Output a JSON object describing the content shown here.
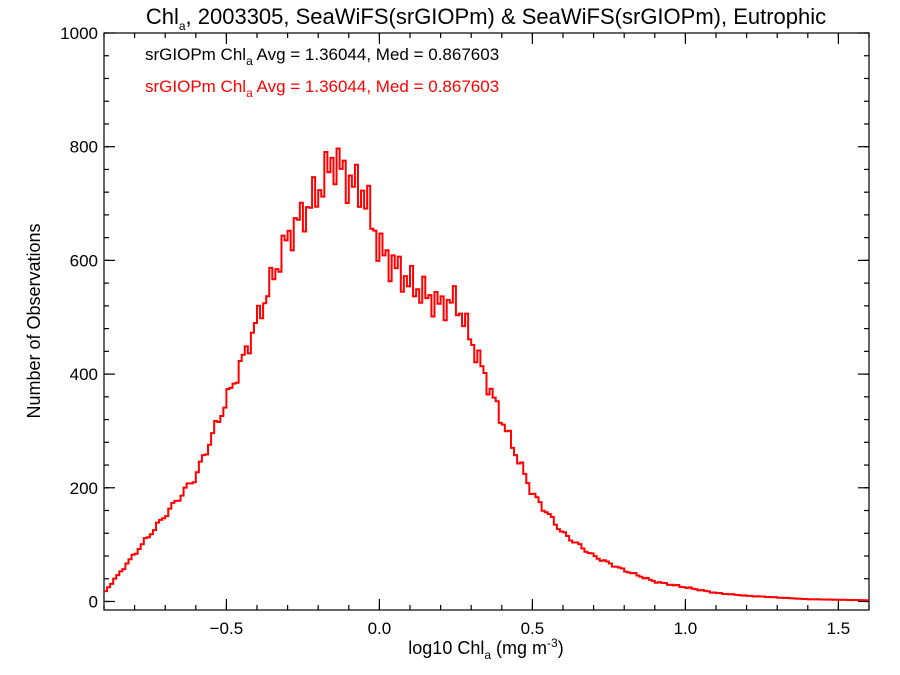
{
  "chart_data": {
    "type": "histogram",
    "title": {
      "prefix": "Chl",
      "subscript": "a",
      "rest": ", 2003305, SeaWiFS(srGIOPm) & SeaWiFS(srGIOPm), Eutrophic"
    },
    "xlabel": {
      "prefix": "log10 Chl",
      "subscript": "a",
      "rest": " (mg m",
      "superscript": "-3",
      "suffix": ")"
    },
    "ylabel": "Number of Observations",
    "xlim": [
      -0.9,
      1.6
    ],
    "ylim": [
      -15,
      1000
    ],
    "x_ticks": [
      -0.5,
      0.0,
      0.5,
      1.0,
      1.5
    ],
    "x_tick_labels": [
      "−0.5",
      "0.0",
      "0.5",
      "1.0",
      "1.5"
    ],
    "y_ticks": [
      0,
      200,
      400,
      600,
      800,
      1000
    ],
    "y_tick_labels": [
      "0",
      "200",
      "400",
      "600",
      "800",
      "1000"
    ],
    "annotations": [
      {
        "prefix": "srGIOPm Chl",
        "subscript": "a",
        "rest": " Avg = 1.36044, Med = 0.867603",
        "color": "#000000"
      },
      {
        "prefix": "srGIOPm Chl",
        "subscript": "a",
        "rest": " Avg = 1.36044, Med = 0.867603",
        "color": "#ff0000"
      }
    ],
    "series": [
      {
        "color": "#ff0000",
        "x": [
          -0.9,
          -0.6,
          -0.45,
          -0.3,
          -0.2,
          -0.15,
          -0.1,
          -0.05,
          0.0,
          0.1,
          0.2,
          0.25,
          0.3,
          0.4,
          0.5,
          0.6,
          0.7,
          0.8,
          0.9,
          1.0,
          1.1,
          1.2,
          1.3,
          1.4,
          1.5,
          1.6
        ],
        "y": [
          15,
          220,
          420,
          640,
          720,
          780,
          740,
          720,
          620,
          560,
          520,
          530,
          460,
          320,
          190,
          120,
          80,
          55,
          35,
          25,
          15,
          10,
          7,
          4,
          3,
          2
        ]
      }
    ]
  }
}
